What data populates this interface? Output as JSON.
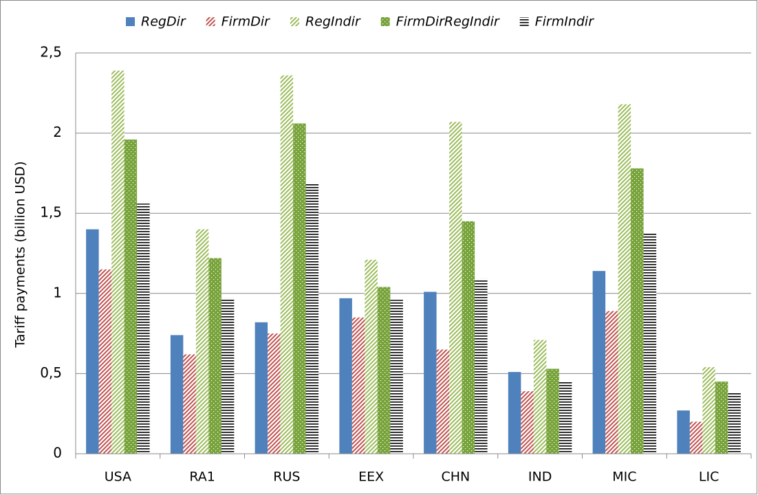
{
  "chart_data": {
    "type": "bar",
    "y_label": "Tariff payments (billion USD)",
    "categories": [
      "USA",
      "RA1",
      "RUS",
      "EEX",
      "CHN",
      "IND",
      "MIC",
      "LIC"
    ],
    "series": [
      {
        "name": "RegDir",
        "color": "#4f81bd",
        "pattern": "solid",
        "values": [
          1.4,
          0.74,
          0.82,
          0.97,
          1.01,
          0.51,
          1.14,
          0.27
        ]
      },
      {
        "name": "FirmDir",
        "color": "#c0504d",
        "pattern": "diagonal",
        "values": [
          1.15,
          0.62,
          0.75,
          0.85,
          0.65,
          0.39,
          0.89,
          0.2
        ]
      },
      {
        "name": "RegIndir",
        "color": "#9bbb59",
        "pattern": "diagonal",
        "values": [
          2.39,
          1.4,
          2.36,
          1.21,
          2.07,
          0.71,
          2.18,
          0.54
        ]
      },
      {
        "name": "FirmDirRegIndir",
        "color": "#77a33a",
        "pattern": "dots",
        "values": [
          1.96,
          1.22,
          2.06,
          1.04,
          1.45,
          0.53,
          1.78,
          0.45
        ]
      },
      {
        "name": "FirmIndir",
        "color": "#000000",
        "pattern": "horizontal",
        "values": [
          1.56,
          0.97,
          1.69,
          0.96,
          1.09,
          0.45,
          1.38,
          0.38
        ]
      }
    ],
    "ylim": [
      0,
      2.5
    ],
    "yticks": [
      0,
      {
        "value": 0.5,
        "label": "0,5"
      },
      1,
      {
        "value": 1.5,
        "label": "1,5"
      },
      2,
      {
        "value": 2.5,
        "label": "2,5"
      }
    ],
    "grid": true,
    "legend": "top"
  }
}
